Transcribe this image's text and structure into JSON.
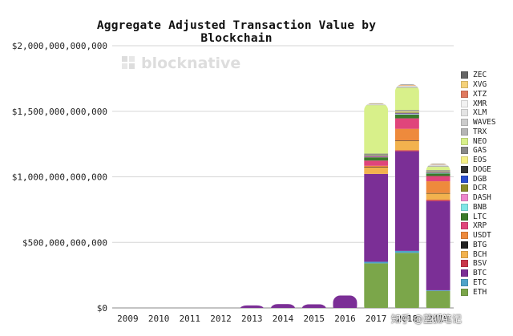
{
  "watermark": {
    "logo_text": "blocknative"
  },
  "footer_watermark": "知乎 @蓝狐笔记",
  "chart_data": {
    "type": "bar",
    "stacked": true,
    "title": "Aggregate Adjusted Transaction Value by Blockchain",
    "xlabel": "",
    "ylabel": "",
    "ylim": [
      0,
      2000000000000
    ],
    "yticks": [
      0,
      500000000000,
      1000000000000,
      1500000000000,
      2000000000000
    ],
    "ytick_labels": [
      "$0",
      "$500,000,000,000",
      "$1,000,000,000,000",
      "$1,500,000,000,000",
      "$2,000,000,000,000"
    ],
    "grid": true,
    "legend_position": "right",
    "categories": [
      "2009",
      "2010",
      "2011",
      "2012",
      "2013",
      "2014",
      "2015",
      "2016",
      "2017",
      "2018",
      "2019"
    ],
    "series": [
      {
        "name": "ETH",
        "color": "#7ba64a",
        "values": [
          0,
          0,
          0,
          0,
          0,
          0,
          0,
          0,
          340000000000,
          420000000000,
          130000000000
        ]
      },
      {
        "name": "ETC",
        "color": "#4fa3c9",
        "values": [
          0,
          0,
          0,
          0,
          0,
          0,
          0,
          0,
          12000000000,
          15000000000,
          5000000000
        ]
      },
      {
        "name": "BTC",
        "color": "#7b2f96",
        "values": [
          0,
          0,
          0,
          0,
          20000000000,
          30000000000,
          28000000000,
          95000000000,
          670000000000,
          760000000000,
          680000000000
        ]
      },
      {
        "name": "BSV",
        "color": "#c9374a",
        "values": [
          0,
          0,
          0,
          0,
          0,
          0,
          0,
          0,
          0,
          8000000000,
          10000000000
        ]
      },
      {
        "name": "BCH",
        "color": "#f2b24e",
        "values": [
          0,
          0,
          0,
          0,
          0,
          0,
          0,
          0,
          50000000000,
          70000000000,
          50000000000
        ]
      },
      {
        "name": "BTG",
        "color": "#222222",
        "values": [
          0,
          0,
          0,
          0,
          0,
          0,
          0,
          0,
          2000000000,
          3000000000,
          1000000000
        ]
      },
      {
        "name": "USDT",
        "color": "#ee8a3c",
        "values": [
          0,
          0,
          0,
          0,
          0,
          0,
          0,
          0,
          10000000000,
          90000000000,
          90000000000
        ]
      },
      {
        "name": "XRP",
        "color": "#e0457b",
        "values": [
          0,
          0,
          0,
          0,
          0,
          0,
          0,
          0,
          40000000000,
          80000000000,
          40000000000
        ]
      },
      {
        "name": "LTC",
        "color": "#3a7a2a",
        "values": [
          0,
          0,
          0,
          0,
          0,
          0,
          0,
          0,
          25000000000,
          30000000000,
          20000000000
        ]
      },
      {
        "name": "BNB",
        "color": "#7fe6e6",
        "values": [
          0,
          0,
          0,
          0,
          0,
          0,
          0,
          0,
          0,
          2000000000,
          3000000000
        ]
      },
      {
        "name": "DASH",
        "color": "#ee88cc",
        "values": [
          0,
          0,
          0,
          0,
          0,
          0,
          0,
          0,
          8000000000,
          5000000000,
          3000000000
        ]
      },
      {
        "name": "DCR",
        "color": "#8a8a2a",
        "values": [
          0,
          0,
          0,
          0,
          0,
          0,
          0,
          0,
          2000000000,
          3000000000,
          2000000000
        ]
      },
      {
        "name": "DGB",
        "color": "#2a4ecf",
        "values": [
          0,
          0,
          0,
          0,
          0,
          0,
          0,
          0,
          1000000000,
          1000000000,
          1000000000
        ]
      },
      {
        "name": "DOGE",
        "color": "#333333",
        "values": [
          0,
          0,
          0,
          0,
          0,
          0,
          0,
          0,
          2000000000,
          2000000000,
          1000000000
        ]
      },
      {
        "name": "EOS",
        "color": "#f5ef86",
        "values": [
          0,
          0,
          0,
          0,
          0,
          0,
          0,
          0,
          5000000000,
          10000000000,
          5000000000
        ]
      },
      {
        "name": "GAS",
        "color": "#888888",
        "values": [
          0,
          0,
          0,
          0,
          0,
          0,
          0,
          0,
          10000000000,
          10000000000,
          10000000000
        ]
      },
      {
        "name": "NEO",
        "color": "#d8f08a",
        "values": [
          0,
          0,
          0,
          0,
          0,
          0,
          0,
          0,
          370000000000,
          170000000000,
          25000000000
        ]
      },
      {
        "name": "TRX",
        "color": "#b5b5b5",
        "values": [
          0,
          0,
          0,
          0,
          0,
          0,
          0,
          0,
          3000000000,
          8000000000,
          8000000000
        ]
      },
      {
        "name": "WAVES",
        "color": "#cccccc",
        "values": [
          0,
          0,
          0,
          0,
          0,
          0,
          0,
          0,
          2000000000,
          3000000000,
          3000000000
        ]
      },
      {
        "name": "XLM",
        "color": "#e4e4e4",
        "values": [
          0,
          0,
          0,
          0,
          0,
          0,
          0,
          0,
          2000000000,
          5000000000,
          5000000000
        ]
      },
      {
        "name": "XMR",
        "color": "#f2f2f2",
        "values": [
          0,
          0,
          0,
          0,
          0,
          0,
          0,
          0,
          2000000000,
          3000000000,
          3000000000
        ]
      },
      {
        "name": "XTZ",
        "color": "#e07a5f",
        "values": [
          0,
          0,
          0,
          0,
          0,
          0,
          0,
          0,
          0,
          1000000000,
          2000000000
        ]
      },
      {
        "name": "XVG",
        "color": "#f5d27a",
        "values": [
          0,
          0,
          0,
          0,
          0,
          0,
          0,
          0,
          2000000000,
          2000000000,
          1000000000
        ]
      },
      {
        "name": "ZEC",
        "color": "#666666",
        "values": [
          0,
          0,
          0,
          0,
          0,
          0,
          0,
          0,
          3000000000,
          4000000000,
          2000000000
        ]
      }
    ]
  }
}
